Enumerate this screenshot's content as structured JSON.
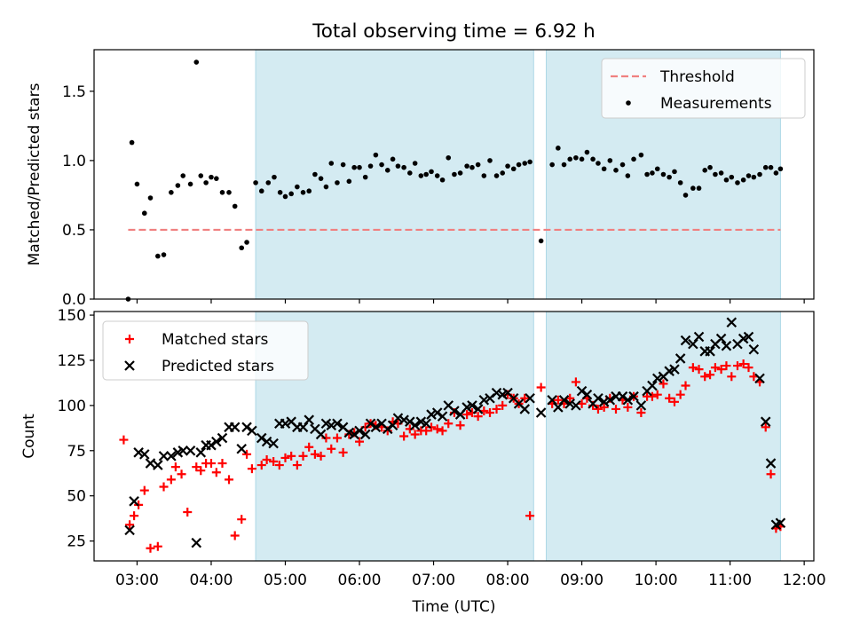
{
  "title": "Total observing time = 6.92 h",
  "colors": {
    "shade": "#add8e6",
    "threshold": "#f08080",
    "measurement": "#000000",
    "matched": "#ff0000",
    "predicted": "#000000"
  },
  "chart_data": [
    {
      "type": "scatter",
      "ylabel": "Matched/Predicted stars",
      "xlim": [
        2.42,
        12.13
      ],
      "ylim": [
        0,
        1.8
      ],
      "yticks": [
        0.0,
        0.5,
        1.0,
        1.5
      ],
      "ytick_labels": [
        "0.0",
        "0.5",
        "1.0",
        "1.5"
      ],
      "legend_position": "upper right",
      "shaded_intervals": [
        [
          4.6,
          8.35
        ],
        [
          8.52,
          11.68
        ]
      ],
      "threshold": {
        "name": "Threshold",
        "y": 0.5,
        "x_range": [
          2.88,
          11.68
        ],
        "style": "dashed"
      },
      "series": [
        {
          "name": "Measurements",
          "x": [
            2.88,
            2.93,
            3.0,
            3.1,
            3.18,
            3.28,
            3.36,
            3.46,
            3.55,
            3.62,
            3.72,
            3.8,
            3.86,
            3.93,
            4.0,
            4.07,
            4.15,
            4.24,
            4.32,
            4.41,
            4.48,
            4.6,
            4.68,
            4.77,
            4.85,
            4.93,
            5.0,
            5.08,
            5.16,
            5.24,
            5.32,
            5.4,
            5.48,
            5.55,
            5.62,
            5.7,
            5.78,
            5.86,
            5.93,
            6.0,
            6.08,
            6.15,
            6.22,
            6.3,
            6.38,
            6.45,
            6.52,
            6.6,
            6.68,
            6.75,
            6.83,
            6.9,
            6.97,
            7.05,
            7.12,
            7.2,
            7.28,
            7.36,
            7.45,
            7.52,
            7.6,
            7.68,
            7.76,
            7.85,
            7.93,
            8.0,
            8.08,
            8.15,
            8.23,
            8.3,
            8.45,
            8.6,
            8.68,
            8.76,
            8.84,
            8.92,
            9.0,
            9.07,
            9.15,
            9.22,
            9.3,
            9.38,
            9.46,
            9.55,
            9.62,
            9.7,
            9.8,
            9.88,
            9.95,
            10.02,
            10.1,
            10.18,
            10.25,
            10.33,
            10.4,
            10.5,
            10.58,
            10.66,
            10.73,
            10.8,
            10.88,
            10.95,
            11.02,
            11.1,
            11.18,
            11.25,
            11.32,
            11.4,
            11.48,
            11.55,
            11.62,
            11.68
          ],
          "y": [
            0.0,
            1.13,
            0.83,
            0.62,
            0.73,
            0.31,
            0.32,
            0.77,
            0.82,
            0.89,
            0.83,
            1.71,
            0.89,
            0.84,
            0.88,
            0.87,
            0.77,
            0.77,
            0.67,
            0.37,
            0.41,
            0.84,
            0.78,
            0.84,
            0.88,
            0.77,
            0.74,
            0.76,
            0.81,
            0.77,
            0.78,
            0.9,
            0.87,
            0.81,
            0.98,
            0.84,
            0.97,
            0.85,
            0.95,
            0.95,
            0.88,
            0.96,
            1.04,
            0.97,
            0.93,
            1.01,
            0.96,
            0.95,
            0.91,
            0.98,
            0.89,
            0.9,
            0.92,
            0.89,
            0.86,
            1.02,
            0.9,
            0.91,
            0.96,
            0.95,
            0.97,
            0.89,
            1.0,
            0.89,
            0.91,
            0.96,
            0.94,
            0.97,
            0.98,
            0.99,
            0.42,
            0.97,
            1.09,
            0.97,
            1.01,
            1.02,
            1.01,
            1.06,
            1.01,
            0.98,
            0.94,
            1.0,
            0.93,
            0.97,
            0.89,
            1.01,
            1.04,
            0.9,
            0.91,
            0.94,
            0.9,
            0.88,
            0.92,
            0.84,
            0.75,
            0.8,
            0.8,
            0.93,
            0.95,
            0.9,
            0.91,
            0.86,
            0.88,
            0.84,
            0.86,
            0.89,
            0.88,
            0.9,
            0.95,
            0.95,
            0.91,
            0.94
          ]
        }
      ]
    },
    {
      "type": "scatter",
      "xlabel": "Time (UTC)",
      "ylabel": "Count",
      "xlim": [
        2.42,
        12.13
      ],
      "ylim": [
        14,
        152
      ],
      "xticks": [
        3,
        4,
        5,
        6,
        7,
        8,
        9,
        10,
        11,
        12
      ],
      "xtick_labels": [
        "03:00",
        "04:00",
        "05:00",
        "06:00",
        "07:00",
        "08:00",
        "09:00",
        "10:00",
        "11:00",
        "12:00"
      ],
      "yticks": [
        25,
        50,
        75,
        100,
        125,
        150
      ],
      "ytick_labels": [
        "25",
        "50",
        "75",
        "100",
        "125",
        "150"
      ],
      "legend_position": "upper left",
      "shaded_intervals": [
        [
          4.6,
          8.35
        ],
        [
          8.52,
          11.68
        ]
      ],
      "series": [
        {
          "name": "Matched stars",
          "marker": "plus",
          "x": [
            2.82,
            2.9,
            2.96,
            3.02,
            3.1,
            3.18,
            3.28,
            3.36,
            3.46,
            3.52,
            3.6,
            3.68,
            3.8,
            3.86,
            3.93,
            4.0,
            4.07,
            4.15,
            4.24,
            4.32,
            4.41,
            4.48,
            4.55,
            4.68,
            4.75,
            4.84,
            4.92,
            5.0,
            5.08,
            5.16,
            5.24,
            5.32,
            5.4,
            5.48,
            5.55,
            5.62,
            5.7,
            5.78,
            5.86,
            5.93,
            6.0,
            6.08,
            6.15,
            6.22,
            6.3,
            6.38,
            6.45,
            6.52,
            6.6,
            6.68,
            6.75,
            6.83,
            6.9,
            6.97,
            7.05,
            7.12,
            7.2,
            7.28,
            7.36,
            7.45,
            7.52,
            7.6,
            7.68,
            7.76,
            7.85,
            7.93,
            8.0,
            8.08,
            8.15,
            8.23,
            8.3,
            8.45,
            8.6,
            8.68,
            8.76,
            8.84,
            8.92,
            9.0,
            9.07,
            9.15,
            9.22,
            9.3,
            9.38,
            9.46,
            9.55,
            9.62,
            9.7,
            9.8,
            9.88,
            9.95,
            10.02,
            10.1,
            10.18,
            10.25,
            10.33,
            10.4,
            10.5,
            10.58,
            10.66,
            10.73,
            10.8,
            10.88,
            10.95,
            11.02,
            11.1,
            11.18,
            11.25,
            11.32,
            11.4,
            11.48,
            11.55,
            11.62,
            11.68
          ],
          "y": [
            81,
            34,
            39,
            45,
            53,
            21,
            22,
            55,
            59,
            66,
            62,
            41,
            66,
            64,
            68,
            68,
            63,
            68,
            59,
            28,
            37,
            73,
            65,
            67,
            70,
            69,
            67,
            71,
            72,
            67,
            72,
            77,
            73,
            72,
            82,
            76,
            82,
            74,
            84,
            85,
            80,
            88,
            90,
            89,
            88,
            86,
            91,
            90,
            83,
            87,
            84,
            86,
            86,
            88,
            87,
            86,
            90,
            96,
            89,
            95,
            96,
            94,
            97,
            96,
            98,
            100,
            106,
            104,
            101,
            104,
            39,
            110,
            101,
            103,
            101,
            104,
            113,
            101,
            104,
            100,
            98,
            99,
            104,
            98,
            103,
            99,
            105,
            96,
            105,
            105,
            106,
            112,
            104,
            102,
            106,
            111,
            121,
            120,
            116,
            117,
            121,
            120,
            122,
            116,
            122,
            123,
            121,
            116,
            113,
            88,
            62,
            32,
            33
          ]
        },
        {
          "name": "Predicted stars",
          "marker": "x",
          "x": [
            2.9,
            2.96,
            3.02,
            3.1,
            3.18,
            3.28,
            3.36,
            3.46,
            3.55,
            3.62,
            3.72,
            3.8,
            3.86,
            3.93,
            4.0,
            4.07,
            4.15,
            4.24,
            4.32,
            4.41,
            4.48,
            4.55,
            4.68,
            4.75,
            4.84,
            4.92,
            5.0,
            5.08,
            5.16,
            5.24,
            5.32,
            5.4,
            5.48,
            5.55,
            5.62,
            5.7,
            5.78,
            5.86,
            5.93,
            6.0,
            6.08,
            6.15,
            6.22,
            6.3,
            6.38,
            6.45,
            6.52,
            6.6,
            6.68,
            6.75,
            6.83,
            6.9,
            6.97,
            7.05,
            7.12,
            7.2,
            7.28,
            7.36,
            7.45,
            7.52,
            7.6,
            7.68,
            7.76,
            7.85,
            7.93,
            8.0,
            8.08,
            8.15,
            8.23,
            8.3,
            8.45,
            8.6,
            8.68,
            8.76,
            8.84,
            8.92,
            9.0,
            9.07,
            9.15,
            9.22,
            9.3,
            9.38,
            9.46,
            9.55,
            9.62,
            9.7,
            9.8,
            9.88,
            9.95,
            10.02,
            10.1,
            10.18,
            10.25,
            10.33,
            10.4,
            10.5,
            10.58,
            10.66,
            10.73,
            10.8,
            10.88,
            10.95,
            11.02,
            11.1,
            11.18,
            11.25,
            11.32,
            11.4,
            11.48,
            11.55,
            11.62,
            11.68
          ],
          "y": [
            31,
            47,
            74,
            73,
            68,
            67,
            72,
            72,
            74,
            75,
            75,
            24,
            74,
            78,
            78,
            80,
            82,
            88,
            88,
            76,
            88,
            86,
            82,
            80,
            79,
            90,
            90,
            91,
            88,
            88,
            92,
            87,
            84,
            90,
            89,
            90,
            88,
            85,
            84,
            86,
            84,
            90,
            88,
            90,
            87,
            89,
            93,
            92,
            91,
            89,
            91,
            90,
            95,
            96,
            94,
            100,
            97,
            95,
            99,
            100,
            98,
            103,
            104,
            107,
            106,
            107,
            104,
            101,
            98,
            104,
            96,
            103,
            99,
            103,
            101,
            100,
            108,
            106,
            101,
            104,
            102,
            103,
            105,
            105,
            103,
            105,
            100,
            108,
            111,
            115,
            116,
            119,
            120,
            126,
            136,
            134,
            138,
            130,
            130,
            134,
            137,
            133,
            146,
            134,
            137,
            138,
            131,
            115,
            91,
            68,
            34,
            35
          ]
        }
      ]
    }
  ]
}
